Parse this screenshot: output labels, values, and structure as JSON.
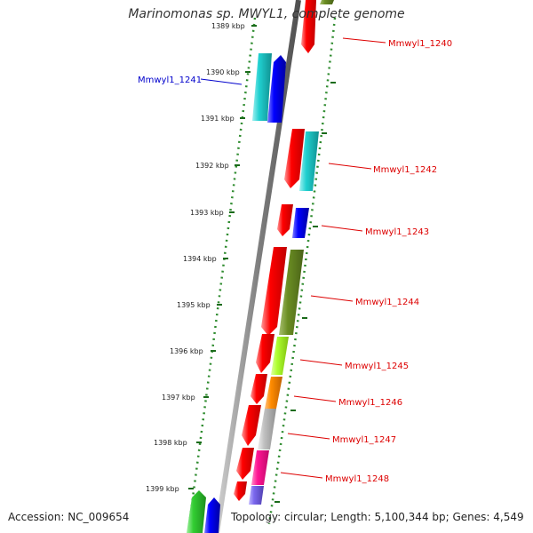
{
  "title": "Marinomonas sp. MWYL1, complete genome",
  "accession": "Accession: NC_009654",
  "summary": "Topology: circular; Length: 5,100,344 bp; Genes: 4,549",
  "colors": {
    "backbone": "#808080",
    "tick_dots": "#2e8b2e",
    "strand_red": "#ff0000",
    "strand_cyan": "#20d0d0",
    "strand_blue": "#0000ff",
    "strand_olive": "#6b8e23",
    "strand_lime": "#adff2f",
    "strand_orange": "#ff8c00",
    "strand_grey": "#c0c0c0",
    "strand_pink": "#ff1493",
    "strand_purple": "#7b68ee",
    "strand_green": "#32cd32",
    "label_red": "#dd0000",
    "label_blue": "#0000cc"
  },
  "ticks": [
    {
      "label": "1389 kbp"
    },
    {
      "label": "1390 kbp"
    },
    {
      "label": "1391 kbp"
    },
    {
      "label": "1392 kbp"
    },
    {
      "label": "1393 kbp"
    },
    {
      "label": "1394 kbp"
    },
    {
      "label": "1395 kbp"
    },
    {
      "label": "1396 kbp"
    },
    {
      "label": "1397 kbp"
    },
    {
      "label": "1398 kbp"
    },
    {
      "label": "1399 kbp"
    }
  ],
  "genes": [
    {
      "name": "Mmwyl1_1240",
      "color": "label_red"
    },
    {
      "name": "Mmwyl1_1241",
      "color": "label_blue"
    },
    {
      "name": "Mmwyl1_1242",
      "color": "label_red"
    },
    {
      "name": "Mmwyl1_1243",
      "color": "label_red"
    },
    {
      "name": "Mmwyl1_1244",
      "color": "label_red"
    },
    {
      "name": "Mmwyl1_1245",
      "color": "label_red"
    },
    {
      "name": "Mmwyl1_1246",
      "color": "label_red"
    },
    {
      "name": "Mmwyl1_1247",
      "color": "label_red"
    },
    {
      "name": "Mmwyl1_1248",
      "color": "label_red"
    }
  ]
}
